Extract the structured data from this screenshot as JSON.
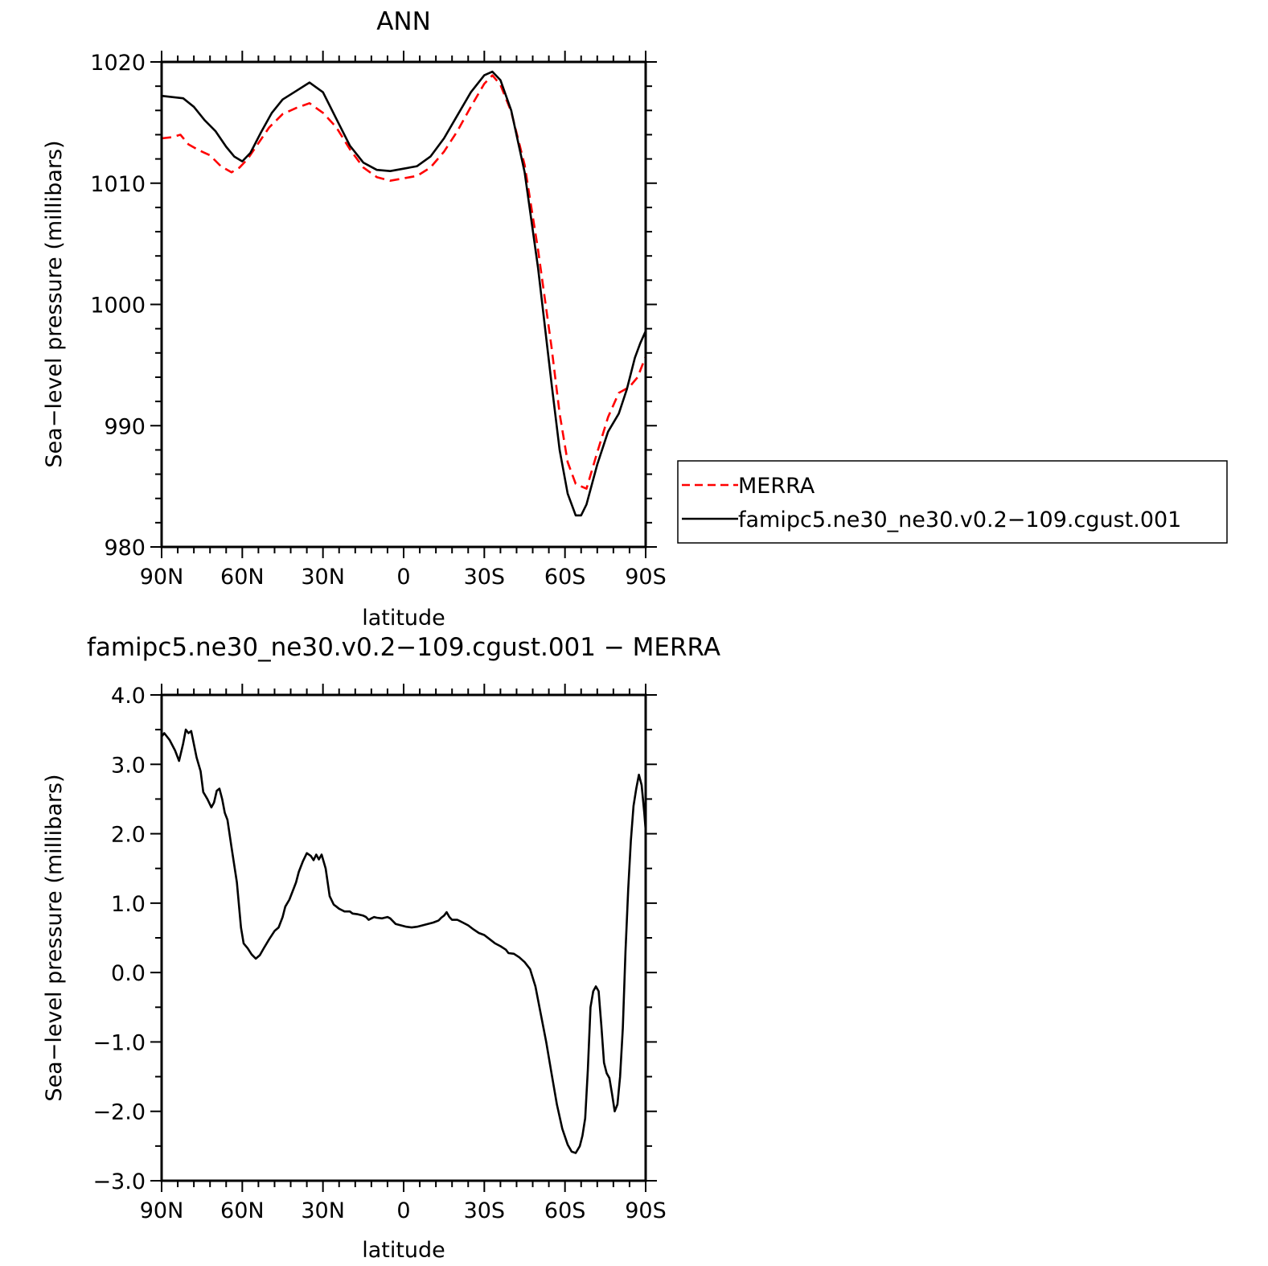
{
  "chart_data": [
    {
      "type": "line",
      "title": "ANN",
      "xlabel": "latitude",
      "ylabel": "Sea−level pressure (millibars)",
      "x_ticks": [
        90,
        60,
        30,
        0,
        -30,
        -60,
        -90
      ],
      "x_tick_labels": [
        "90N",
        "60N",
        "30N",
        "0",
        "30S",
        "60S",
        "90S"
      ],
      "xlim": [
        90,
        -90
      ],
      "ylim": [
        980,
        1020
      ],
      "y_ticks": [
        980,
        990,
        1000,
        1010,
        1020
      ],
      "y_tick_labels": [
        "980",
        "990",
        "1000",
        "1010",
        "1020"
      ],
      "grid": false,
      "legend_position": "right",
      "series": [
        {
          "name": "MERRA",
          "color": "#ff0000",
          "dash": "dashed",
          "points": [
            [
              90,
              1013.7
            ],
            [
              86,
              1013.8
            ],
            [
              83,
              1014.0
            ],
            [
              80,
              1013.2
            ],
            [
              76,
              1012.7
            ],
            [
              72,
              1012.3
            ],
            [
              68,
              1011.4
            ],
            [
              64,
              1010.9
            ],
            [
              61,
              1011.3
            ],
            [
              58,
              1012.0
            ],
            [
              54,
              1013.3
            ],
            [
              50,
              1014.6
            ],
            [
              45,
              1015.7
            ],
            [
              40,
              1016.2
            ],
            [
              35,
              1016.6
            ],
            [
              30,
              1015.8
            ],
            [
              25,
              1014.6
            ],
            [
              20,
              1012.8
            ],
            [
              15,
              1011.3
            ],
            [
              10,
              1010.5
            ],
            [
              5,
              1010.2
            ],
            [
              0,
              1010.4
            ],
            [
              -5,
              1010.6
            ],
            [
              -10,
              1011.3
            ],
            [
              -15,
              1012.6
            ],
            [
              -20,
              1014.3
            ],
            [
              -25,
              1016.3
            ],
            [
              -30,
              1018.2
            ],
            [
              -33,
              1018.9
            ],
            [
              -36,
              1018.1
            ],
            [
              -40,
              1015.9
            ],
            [
              -45,
              1011.5
            ],
            [
              -50,
              1004.5
            ],
            [
              -55,
              996.5
            ],
            [
              -58,
              991.0
            ],
            [
              -61,
              987.0
            ],
            [
              -64,
              985.2
            ],
            [
              -68,
              984.8
            ],
            [
              -72,
              987.8
            ],
            [
              -76,
              990.7
            ],
            [
              -80,
              992.7
            ],
            [
              -84,
              993.2
            ],
            [
              -87,
              994.0
            ],
            [
              -90,
              995.7
            ]
          ]
        },
        {
          "name": "famipc5.ne30_ne30.v0.2−109.cgust.001",
          "color": "#000000",
          "dash": "solid",
          "points": [
            [
              90,
              1017.2
            ],
            [
              86,
              1017.1
            ],
            [
              82,
              1017.0
            ],
            [
              78,
              1016.3
            ],
            [
              74,
              1015.2
            ],
            [
              70,
              1014.3
            ],
            [
              66,
              1013.0
            ],
            [
              63,
              1012.2
            ],
            [
              60,
              1011.8
            ],
            [
              57,
              1012.5
            ],
            [
              53,
              1014.2
            ],
            [
              49,
              1015.8
            ],
            [
              45,
              1016.9
            ],
            [
              40,
              1017.6
            ],
            [
              35,
              1018.3
            ],
            [
              30,
              1017.5
            ],
            [
              25,
              1015.3
            ],
            [
              20,
              1013.1
            ],
            [
              15,
              1011.7
            ],
            [
              10,
              1011.1
            ],
            [
              5,
              1011.0
            ],
            [
              0,
              1011.2
            ],
            [
              -5,
              1011.4
            ],
            [
              -10,
              1012.2
            ],
            [
              -15,
              1013.7
            ],
            [
              -20,
              1015.6
            ],
            [
              -25,
              1017.5
            ],
            [
              -30,
              1018.9
            ],
            [
              -33,
              1019.2
            ],
            [
              -36,
              1018.5
            ],
            [
              -40,
              1016.0
            ],
            [
              -45,
              1010.9
            ],
            [
              -50,
              1003.0
            ],
            [
              -55,
              993.5
            ],
            [
              -58,
              988.0
            ],
            [
              -61,
              984.4
            ],
            [
              -64,
              982.6
            ],
            [
              -66,
              982.6
            ],
            [
              -68,
              983.5
            ],
            [
              -72,
              986.8
            ],
            [
              -76,
              989.5
            ],
            [
              -80,
              991.0
            ],
            [
              -83,
              993.0
            ],
            [
              -86,
              995.6
            ],
            [
              -88,
              996.8
            ],
            [
              -90,
              997.8
            ]
          ]
        }
      ]
    },
    {
      "type": "line",
      "title": "famipc5.ne30_ne30.v0.2−109.cgust.001  −  MERRA",
      "xlabel": "latitude",
      "ylabel": "Sea−level pressure (millibars)",
      "x_ticks": [
        90,
        60,
        30,
        0,
        -30,
        -60,
        -90
      ],
      "x_tick_labels": [
        "90N",
        "60N",
        "30N",
        "0",
        "30S",
        "60S",
        "90S"
      ],
      "xlim": [
        90,
        -90
      ],
      "ylim": [
        -3.0,
        4.0
      ],
      "y_ticks": [
        -3.0,
        -2.0,
        -1.0,
        0.0,
        1.0,
        2.0,
        3.0,
        4.0
      ],
      "y_tick_labels": [
        "−3.0",
        "−2.0",
        "−1.0",
        "0.0",
        "1.0",
        "2.0",
        "3.0",
        "4.0"
      ],
      "grid": false,
      "series": [
        {
          "color": "#000000",
          "dash": "solid",
          "points": [
            [
              90,
              3.4
            ],
            [
              89,
              3.45
            ],
            [
              87,
              3.35
            ],
            [
              85,
              3.2
            ],
            [
              83.5,
              3.05
            ],
            [
              82,
              3.3
            ],
            [
              81,
              3.5
            ],
            [
              80,
              3.45
            ],
            [
              79,
              3.48
            ],
            [
              77,
              3.1
            ],
            [
              75.5,
              2.9
            ],
            [
              74.5,
              2.6
            ],
            [
              73,
              2.5
            ],
            [
              71.5,
              2.38
            ],
            [
              70.5,
              2.45
            ],
            [
              69.5,
              2.62
            ],
            [
              68.5,
              2.65
            ],
            [
              67.5,
              2.5
            ],
            [
              66.5,
              2.3
            ],
            [
              65.5,
              2.2
            ],
            [
              64,
              1.8
            ],
            [
              62,
              1.3
            ],
            [
              60.5,
              0.65
            ],
            [
              59.5,
              0.42
            ],
            [
              58,
              0.35
            ],
            [
              56.5,
              0.26
            ],
            [
              55,
              0.2
            ],
            [
              53.5,
              0.25
            ],
            [
              52,
              0.35
            ],
            [
              50,
              0.48
            ],
            [
              48,
              0.6
            ],
            [
              46.5,
              0.65
            ],
            [
              45,
              0.8
            ],
            [
              44,
              0.95
            ],
            [
              42.5,
              1.05
            ],
            [
              41,
              1.2
            ],
            [
              40,
              1.3
            ],
            [
              39,
              1.45
            ],
            [
              37.5,
              1.6
            ],
            [
              36,
              1.72
            ],
            [
              34.5,
              1.68
            ],
            [
              33.5,
              1.62
            ],
            [
              32.5,
              1.7
            ],
            [
              31.5,
              1.63
            ],
            [
              30.5,
              1.7
            ],
            [
              29,
              1.5
            ],
            [
              27.5,
              1.1
            ],
            [
              26,
              0.98
            ],
            [
              25,
              0.95
            ],
            [
              24,
              0.92
            ],
            [
              23,
              0.9
            ],
            [
              22,
              0.88
            ],
            [
              20,
              0.88
            ],
            [
              19,
              0.85
            ],
            [
              17,
              0.84
            ],
            [
              15,
              0.82
            ],
            [
              14,
              0.8
            ],
            [
              13,
              0.76
            ],
            [
              12,
              0.78
            ],
            [
              11,
              0.8
            ],
            [
              10,
              0.79
            ],
            [
              8,
              0.78
            ],
            [
              6,
              0.8
            ],
            [
              5,
              0.78
            ],
            [
              3,
              0.7
            ],
            [
              1,
              0.68
            ],
            [
              -1,
              0.66
            ],
            [
              -3,
              0.65
            ],
            [
              -5,
              0.66
            ],
            [
              -7,
              0.68
            ],
            [
              -9,
              0.7
            ],
            [
              -11,
              0.72
            ],
            [
              -13,
              0.75
            ],
            [
              -14,
              0.79
            ],
            [
              -15,
              0.82
            ],
            [
              -16,
              0.87
            ],
            [
              -17,
              0.8
            ],
            [
              -18,
              0.76
            ],
            [
              -20,
              0.76
            ],
            [
              -22,
              0.72
            ],
            [
              -24,
              0.68
            ],
            [
              -26,
              0.62
            ],
            [
              -28,
              0.57
            ],
            [
              -30,
              0.54
            ],
            [
              -32,
              0.48
            ],
            [
              -34,
              0.42
            ],
            [
              -36,
              0.38
            ],
            [
              -38,
              0.33
            ],
            [
              -39,
              0.28
            ],
            [
              -41,
              0.27
            ],
            [
              -43,
              0.22
            ],
            [
              -45,
              0.15
            ],
            [
              -47,
              0.05
            ],
            [
              -49,
              -0.2
            ],
            [
              -51,
              -0.6
            ],
            [
              -53,
              -1.0
            ],
            [
              -55,
              -1.45
            ],
            [
              -57,
              -1.9
            ],
            [
              -59,
              -2.25
            ],
            [
              -61,
              -2.48
            ],
            [
              -62.5,
              -2.58
            ],
            [
              -64,
              -2.6
            ],
            [
              -65.5,
              -2.5
            ],
            [
              -66.5,
              -2.35
            ],
            [
              -67.5,
              -2.1
            ],
            [
              -68.5,
              -1.4
            ],
            [
              -69.5,
              -0.5
            ],
            [
              -70.5,
              -0.27
            ],
            [
              -71.5,
              -0.2
            ],
            [
              -72.5,
              -0.27
            ],
            [
              -73.5,
              -0.75
            ],
            [
              -74.5,
              -1.3
            ],
            [
              -75.5,
              -1.45
            ],
            [
              -76.5,
              -1.52
            ],
            [
              -77.5,
              -1.75
            ],
            [
              -78.5,
              -2.0
            ],
            [
              -79.5,
              -1.9
            ],
            [
              -80.5,
              -1.5
            ],
            [
              -81.5,
              -0.8
            ],
            [
              -82.5,
              0.3
            ],
            [
              -83.5,
              1.2
            ],
            [
              -84.5,
              1.9
            ],
            [
              -85.5,
              2.4
            ],
            [
              -86.5,
              2.65
            ],
            [
              -87.5,
              2.85
            ],
            [
              -88.5,
              2.7
            ],
            [
              -89.5,
              2.3
            ],
            [
              -90,
              2.05
            ]
          ]
        }
      ]
    }
  ]
}
